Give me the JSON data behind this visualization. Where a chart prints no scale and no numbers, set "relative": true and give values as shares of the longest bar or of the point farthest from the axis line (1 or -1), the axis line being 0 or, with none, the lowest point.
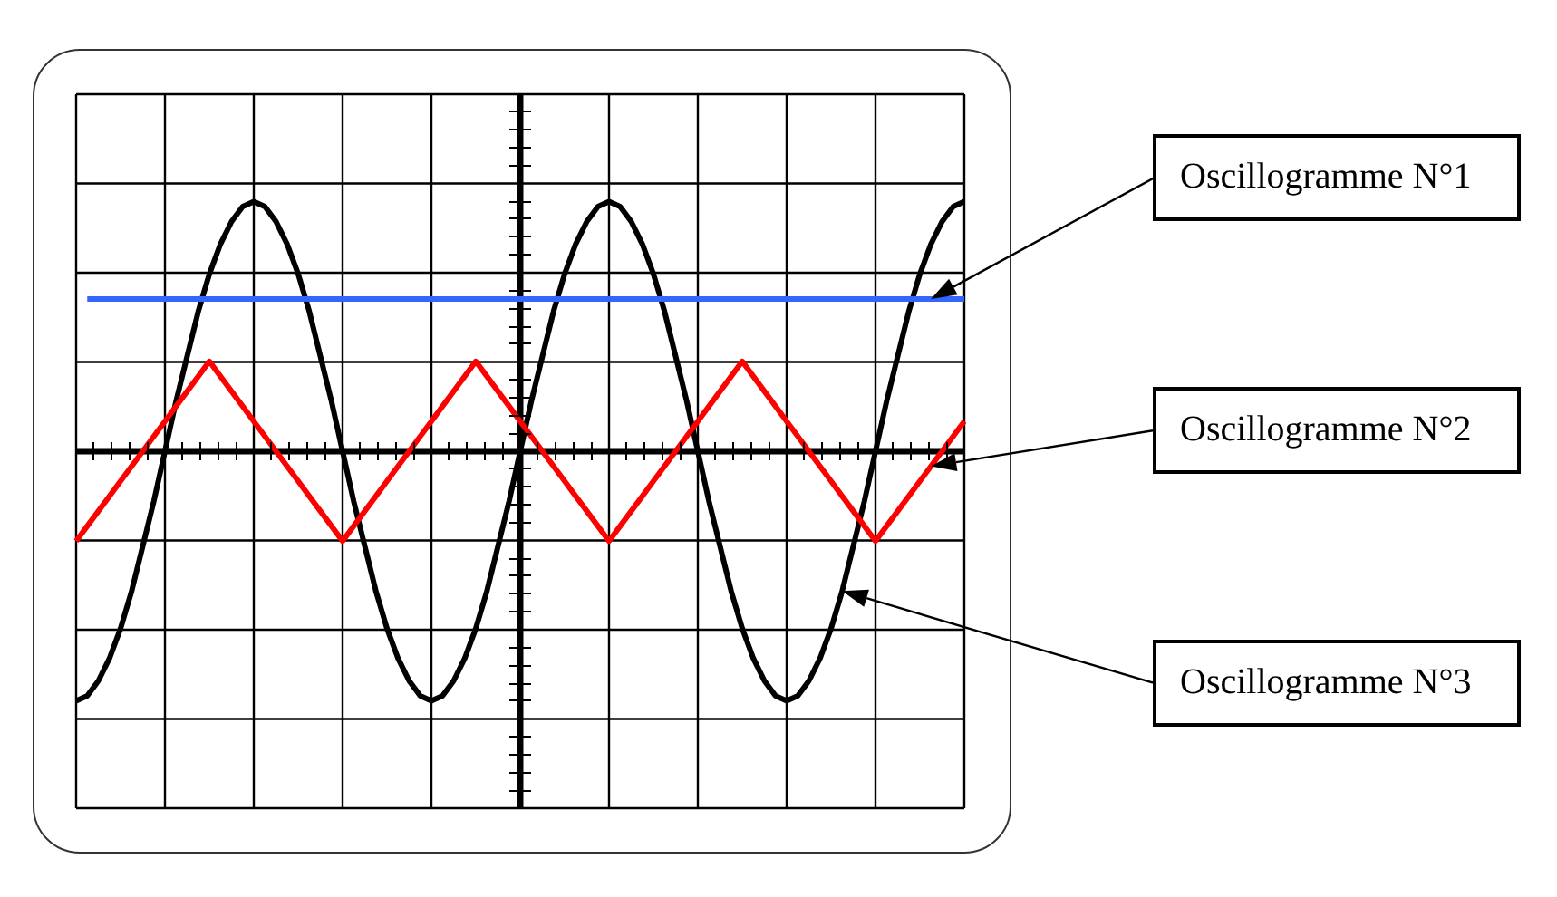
{
  "chart_data": {
    "type": "line",
    "relative": true,
    "grid": true,
    "categories": [
      null,
      null,
      null,
      null,
      null,
      null,
      null,
      null,
      null,
      null,
      null,
      null,
      null,
      null,
      null,
      null,
      null,
      null,
      null,
      null,
      null,
      null,
      null,
      null,
      null,
      null,
      null,
      null,
      null,
      null,
      null,
      null,
      null,
      null,
      null,
      null,
      null,
      null,
      null,
      null,
      null,
      null,
      null,
      null,
      null,
      null,
      null,
      null,
      null,
      null,
      null,
      null,
      null,
      null,
      null,
      null,
      null,
      null,
      null,
      null,
      null,
      null,
      null,
      null,
      null,
      null,
      null,
      null,
      null,
      null,
      null,
      null,
      null,
      null,
      null,
      null,
      null,
      null,
      null,
      null,
      null
    ],
    "series": [
      {
        "name": "Oscillogramme N°1",
        "color": "#3366ff",
        "values": [
          null,
          0.61,
          0.61,
          0.61,
          0.61,
          0.61,
          0.61,
          0.61,
          0.61,
          0.61,
          0.61,
          0.61,
          0.61,
          0.61,
          0.61,
          0.61,
          0.61,
          0.61,
          0.61,
          0.61,
          0.61,
          0.61,
          0.61,
          0.61,
          0.61,
          0.61,
          0.61,
          0.61,
          0.61,
          0.61,
          0.61,
          0.61,
          0.61,
          0.61,
          0.61,
          0.61,
          0.61,
          0.61,
          0.61,
          0.61,
          0.61,
          0.61,
          0.61,
          0.61,
          0.61,
          0.61,
          0.61,
          0.61,
          0.61,
          0.61,
          0.61,
          0.61,
          0.61,
          0.61,
          0.61,
          0.61,
          0.61,
          0.61,
          0.61,
          0.61,
          0.61,
          0.61,
          0.61,
          0.61,
          0.61,
          0.61,
          0.61,
          0.61,
          0.61,
          0.61,
          0.61,
          0.61,
          0.61,
          0.61,
          0.61,
          0.61,
          0.61,
          0.61,
          0.61,
          0.61,
          0.61
        ]
      },
      {
        "name": "Oscillogramme N°2",
        "color": "#ff0000",
        "values": [
          -0.36,
          -0.3,
          -0.24,
          -0.18,
          -0.12,
          -0.06,
          0,
          0.06,
          0.12,
          0.18,
          0.24,
          0.3,
          0.36,
          0.3,
          0.24,
          0.18,
          0.12,
          0.06,
          0,
          -0.06,
          -0.12,
          -0.18,
          -0.24,
          -0.3,
          -0.36,
          -0.3,
          -0.24,
          -0.18,
          -0.12,
          -0.06,
          0,
          0.06,
          0.12,
          0.18,
          0.24,
          0.3,
          0.36,
          0.3,
          0.24,
          0.18,
          0.12,
          0.06,
          0,
          -0.06,
          -0.12,
          -0.18,
          -0.24,
          -0.3,
          -0.36,
          -0.3,
          -0.24,
          -0.18,
          -0.12,
          -0.06,
          0,
          0.06,
          0.12,
          0.18,
          0.24,
          0.3,
          0.36,
          0.3,
          0.24,
          0.18,
          0.12,
          0.06,
          0,
          -0.06,
          -0.12,
          -0.18,
          -0.24,
          -0.3,
          -0.36,
          -0.3,
          -0.24,
          -0.18,
          -0.12,
          -0.06,
          0,
          0.06,
          0.12
        ]
      },
      {
        "name": "Oscillogramme N°3",
        "color": "#000000",
        "values": [
          -1,
          -0.98,
          -0.92,
          -0.83,
          -0.71,
          -0.56,
          -0.38,
          -0.2,
          0,
          0.2,
          0.38,
          0.56,
          0.71,
          0.83,
          0.92,
          0.98,
          1,
          0.98,
          0.92,
          0.83,
          0.71,
          0.56,
          0.38,
          0.2,
          0,
          -0.2,
          -0.38,
          -0.56,
          -0.71,
          -0.83,
          -0.92,
          -0.98,
          -1,
          -0.98,
          -0.92,
          -0.83,
          -0.71,
          -0.56,
          -0.38,
          -0.2,
          0,
          0.2,
          0.38,
          0.56,
          0.71,
          0.83,
          0.92,
          0.98,
          1,
          0.98,
          0.92,
          0.83,
          0.71,
          0.56,
          0.38,
          0.2,
          0,
          -0.2,
          -0.38,
          -0.56,
          -0.71,
          -0.83,
          -0.92,
          -0.98,
          -1,
          -0.98,
          -0.92,
          -0.83,
          -0.71,
          -0.56,
          -0.38,
          -0.2,
          0,
          0.2,
          0.38,
          0.56,
          0.71,
          0.83,
          0.92,
          0.98,
          1
        ]
      }
    ]
  }
}
